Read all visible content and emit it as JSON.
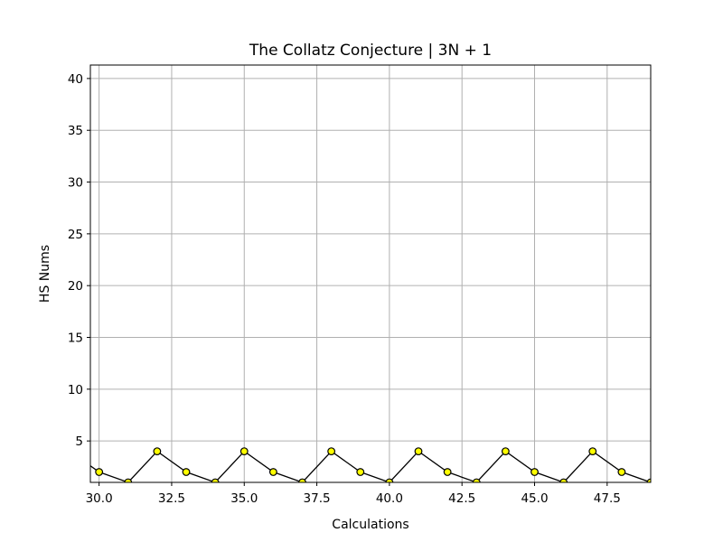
{
  "chart_data": {
    "type": "line",
    "title": "The Collatz Conjecture | 3N + 1",
    "xlabel": "Calculations",
    "ylabel": "HS Nums",
    "xlim": [
      29.7,
      49.0
    ],
    "ylim": [
      1.0,
      41.3
    ],
    "xticks": [
      30.0,
      32.5,
      35.0,
      37.5,
      40.0,
      42.5,
      45.0,
      47.5
    ],
    "xtick_labels": [
      "30.0",
      "32.5",
      "35.0",
      "37.5",
      "40.0",
      "42.5",
      "45.0",
      "47.5"
    ],
    "yticks": [
      5,
      10,
      15,
      20,
      25,
      30,
      35,
      40
    ],
    "ytick_labels": [
      "5",
      "10",
      "15",
      "20",
      "25",
      "30",
      "35",
      "40"
    ],
    "grid": true,
    "line_color": "#000000",
    "marker_fill": "#ffff00",
    "marker_edge": "#000000",
    "series": [
      {
        "x": [
          29,
          30,
          31,
          32,
          33,
          34,
          35,
          36,
          37,
          38,
          39,
          40,
          41,
          42,
          43,
          44,
          45,
          46,
          47,
          48,
          49
        ],
        "y": [
          4,
          2,
          1,
          4,
          2,
          1,
          4,
          2,
          1,
          4,
          2,
          1,
          4,
          2,
          1,
          4,
          2,
          1,
          4,
          2,
          1
        ]
      }
    ]
  }
}
